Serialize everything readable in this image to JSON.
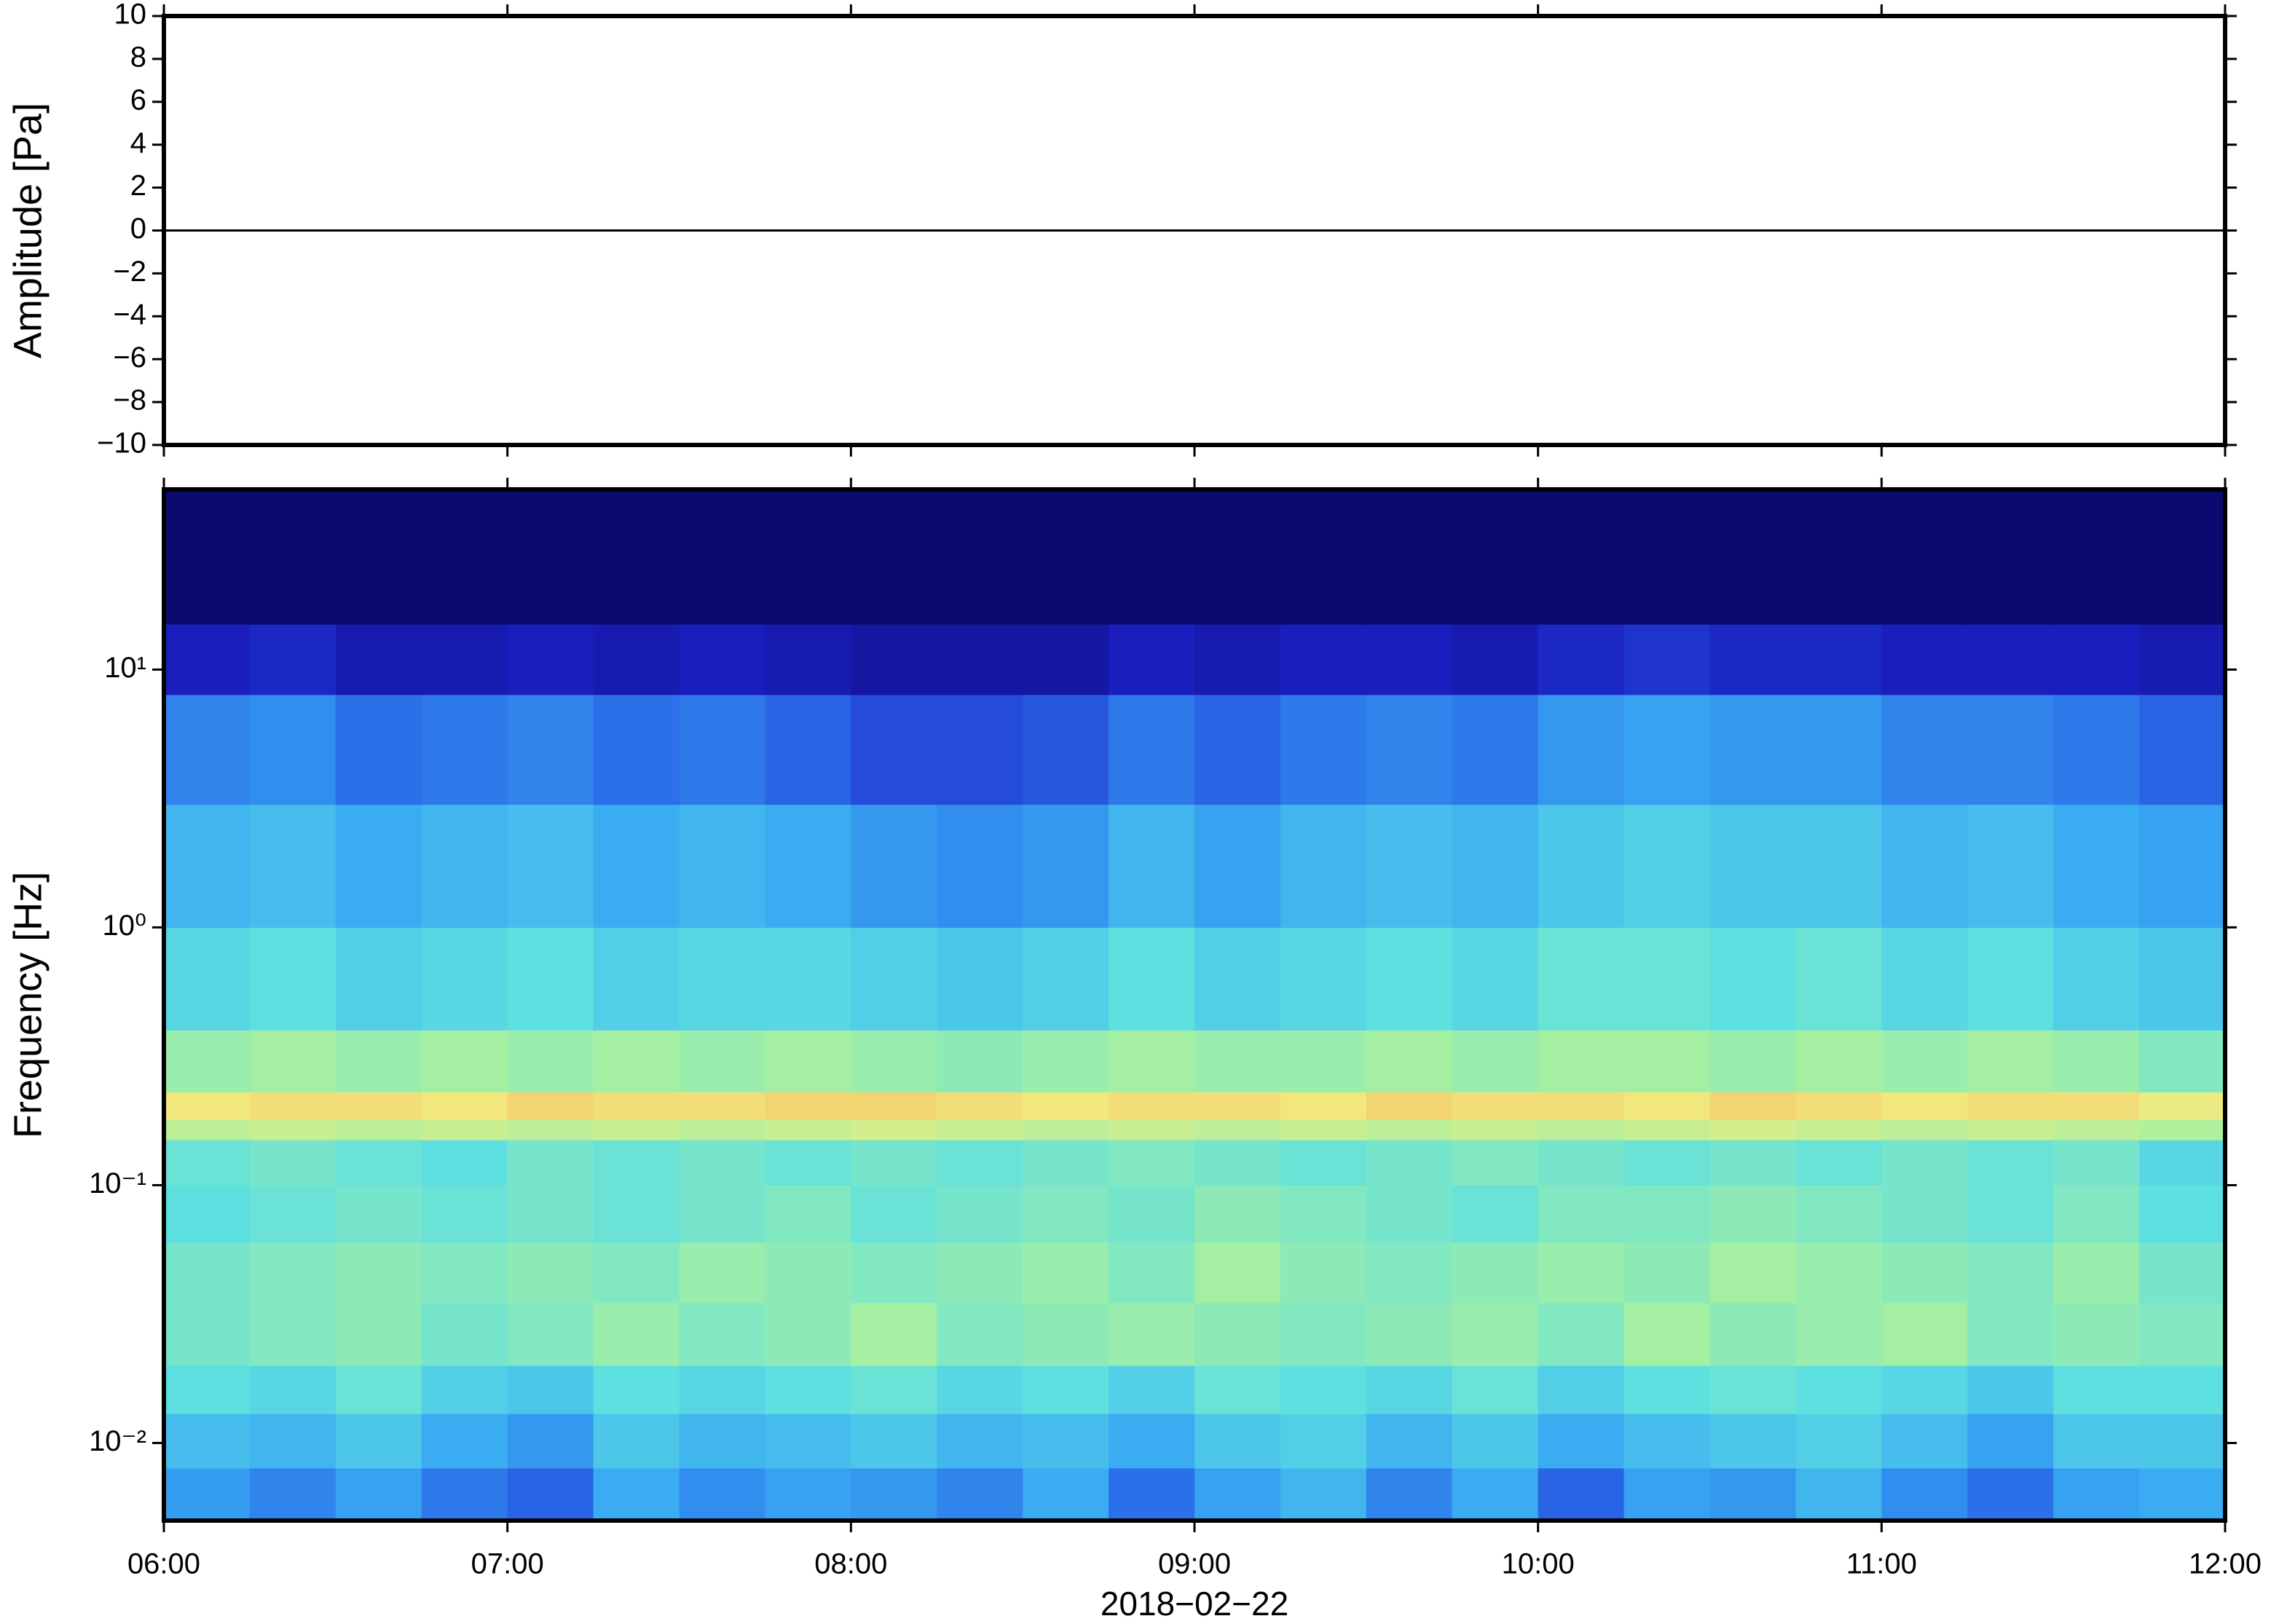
{
  "chart_data": [
    {
      "type": "line",
      "ylabel": "Amplitude [Pa]",
      "x": [
        6,
        6.25,
        6.5,
        6.75,
        7,
        7.25,
        7.5,
        7.75,
        8,
        8.25,
        8.5,
        8.75,
        9,
        9.25,
        9.5,
        9.75,
        10,
        10.25,
        10.5,
        10.75,
        11,
        11.25,
        11.5,
        11.75,
        12
      ],
      "values": [
        0,
        0,
        0,
        0,
        0,
        0,
        0,
        0,
        0,
        0,
        0,
        0,
        0,
        0,
        0,
        0,
        0,
        0,
        0,
        0,
        0,
        0,
        0,
        0,
        0
      ],
      "color": "#000000",
      "xlim": [
        6,
        12
      ],
      "ylim": [
        -10,
        10
      ],
      "yticks": [
        10,
        8,
        6,
        4,
        2,
        0,
        {
          "value": -2,
          "label": "−2"
        },
        {
          "value": -4,
          "label": "−4"
        },
        {
          "value": -6,
          "label": "−6"
        },
        {
          "value": -8,
          "label": "−8"
        },
        {
          "value": -10,
          "label": "−10"
        }
      ]
    },
    {
      "type": "heatmap",
      "ylabel": "Frequency [Hz]",
      "xlabel": "2018−02−22",
      "xlim": [
        6,
        12
      ],
      "xticks": [
        {
          "value": 6,
          "label": "06:00"
        },
        {
          "value": 7,
          "label": "07:00"
        },
        {
          "value": 8,
          "label": "08:00"
        },
        {
          "value": 9,
          "label": "09:00"
        },
        {
          "value": 10,
          "label": "10:00"
        },
        {
          "value": 11,
          "label": "11:00"
        },
        {
          "value": 12,
          "label": "12:00"
        }
      ],
      "ylim": [
        0.005,
        50
      ],
      "log_y": true,
      "yticks": [
        {
          "value": 0.01,
          "label": "10⁻²"
        },
        {
          "value": 0.1,
          "label": "10⁻¹"
        },
        {
          "value": 1,
          "label": "10⁰"
        },
        {
          "value": 10,
          "label": "10¹"
        }
      ],
      "x_edges": [
        6,
        6.25,
        6.5,
        6.75,
        7,
        7.25,
        7.5,
        7.75,
        8,
        8.25,
        8.5,
        8.75,
        9,
        9.25,
        9.5,
        9.75,
        10,
        10.25,
        10.5,
        10.75,
        11,
        11.25,
        11.5,
        11.75,
        12
      ],
      "y_edges": [
        0.005,
        0.008,
        0.013,
        0.02,
        0.035,
        0.06,
        0.1,
        0.15,
        0.18,
        0.23,
        0.4,
        1,
        3,
        8,
        15,
        50
      ],
      "zlim": [
        0,
        100
      ],
      "colors": [
        "#0b0a70",
        "#1a1fc0",
        "#2a6ae8",
        "#38aaf2",
        "#5ee0e0",
        "#a8f0a0",
        "#f0ec80",
        "#f8b060",
        "#f06040"
      ],
      "z": [
        [
          35,
          30,
          36,
          28,
          24,
          38,
          32,
          36,
          34,
          30,
          38,
          26,
          36,
          40,
          30,
          38,
          24,
          36,
          34,
          40,
          32,
          26,
          36,
          38
        ],
        [
          42,
          40,
          44,
          38,
          34,
          44,
          40,
          42,
          44,
          40,
          42,
          38,
          44,
          46,
          40,
          44,
          38,
          42,
          44,
          46,
          42,
          36,
          44,
          44
        ],
        [
          50,
          48,
          52,
          46,
          44,
          50,
          48,
          50,
          52,
          48,
          50,
          46,
          52,
          50,
          48,
          52,
          46,
          50,
          52,
          50,
          48,
          44,
          50,
          50
        ],
        [
          54,
          56,
          58,
          54,
          56,
          60,
          56,
          58,
          62,
          56,
          58,
          60,
          58,
          56,
          58,
          60,
          56,
          62,
          58,
          60,
          62,
          56,
          58,
          56
        ],
        [
          54,
          56,
          58,
          56,
          58,
          56,
          60,
          58,
          56,
          58,
          60,
          56,
          62,
          58,
          56,
          58,
          60,
          58,
          62,
          60,
          58,
          56,
          60,
          54
        ],
        [
          50,
          52,
          54,
          52,
          54,
          52,
          54,
          56,
          52,
          54,
          56,
          54,
          58,
          56,
          54,
          52,
          56,
          56,
          58,
          56,
          54,
          52,
          56,
          50
        ],
        [
          52,
          54,
          52,
          50,
          54,
          52,
          54,
          52,
          54,
          52,
          54,
          56,
          54,
          52,
          54,
          56,
          54,
          52,
          54,
          52,
          54,
          52,
          54,
          48
        ],
        [
          66,
          68,
          66,
          68,
          66,
          68,
          66,
          68,
          70,
          68,
          66,
          68,
          66,
          68,
          66,
          68,
          66,
          68,
          70,
          68,
          66,
          68,
          66,
          64
        ],
        [
          76,
          78,
          78,
          76,
          80,
          78,
          78,
          80,
          80,
          78,
          76,
          78,
          78,
          76,
          80,
          78,
          78,
          76,
          80,
          78,
          76,
          78,
          78,
          74
        ],
        [
          60,
          62,
          60,
          62,
          60,
          62,
          60,
          62,
          60,
          58,
          60,
          62,
          60,
          60,
          62,
          60,
          62,
          62,
          60,
          62,
          60,
          62,
          60,
          56
        ],
        [
          48,
          50,
          46,
          48,
          50,
          46,
          48,
          48,
          46,
          44,
          46,
          50,
          46,
          48,
          50,
          48,
          52,
          52,
          50,
          52,
          48,
          50,
          46,
          44
        ],
        [
          40,
          42,
          38,
          40,
          42,
          38,
          40,
          38,
          34,
          32,
          34,
          40,
          36,
          40,
          42,
          40,
          44,
          46,
          44,
          44,
          40,
          42,
          38,
          36
        ],
        [
          30,
          32,
          26,
          28,
          30,
          26,
          28,
          24,
          20,
          20,
          22,
          28,
          24,
          28,
          30,
          28,
          34,
          36,
          34,
          34,
          30,
          30,
          28,
          24
        ],
        [
          12,
          14,
          10,
          10,
          12,
          10,
          12,
          10,
          8,
          8,
          8,
          12,
          10,
          12,
          12,
          10,
          14,
          16,
          14,
          14,
          12,
          12,
          12,
          10
        ],
        [
          0,
          0,
          0,
          0,
          0,
          0,
          0,
          0,
          0,
          0,
          0,
          0,
          0,
          0,
          0,
          0,
          0,
          0,
          0,
          0,
          0,
          0,
          0,
          0
        ]
      ]
    }
  ]
}
